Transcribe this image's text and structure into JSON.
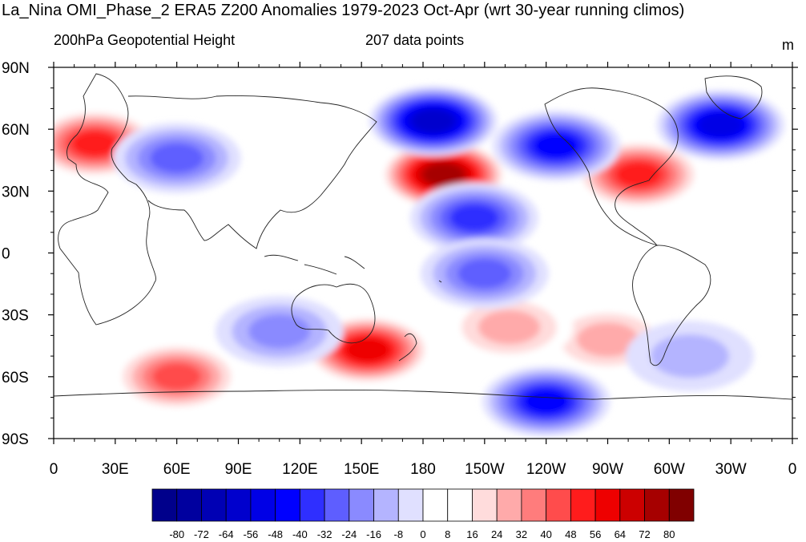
{
  "title": "La_Nina OMI_Phase_2 ERA5 Z200 Anomalies 1979-2023 Oct-Apr (wrt 30-year running climos)",
  "subtitle_left": "200hPa Geopotential Height",
  "subtitle_center": "207 data points",
  "units": "m",
  "map": {
    "projection": "cylindrical-equidistant",
    "lon_range": [
      0,
      360
    ],
    "lat_range": [
      -90,
      90
    ],
    "lat_ticks": [
      {
        "value": 90,
        "label": "90N"
      },
      {
        "value": 60,
        "label": "60N"
      },
      {
        "value": 30,
        "label": "30N"
      },
      {
        "value": 0,
        "label": "0"
      },
      {
        "value": -30,
        "label": "30S"
      },
      {
        "value": -60,
        "label": "60S"
      },
      {
        "value": -90,
        "label": "90S"
      }
    ],
    "lon_ticks": [
      {
        "value": 0,
        "label": "0"
      },
      {
        "value": 30,
        "label": "30E"
      },
      {
        "value": 60,
        "label": "60E"
      },
      {
        "value": 90,
        "label": "90E"
      },
      {
        "value": 120,
        "label": "120E"
      },
      {
        "value": 150,
        "label": "150E"
      },
      {
        "value": 180,
        "label": "180"
      },
      {
        "value": 210,
        "label": "150W"
      },
      {
        "value": 240,
        "label": "120W"
      },
      {
        "value": 270,
        "label": "90W"
      },
      {
        "value": 300,
        "label": "60W"
      },
      {
        "value": 330,
        "label": "30W"
      },
      {
        "value": 360,
        "label": "0"
      }
    ],
    "anomaly_centers": [
      {
        "lon": 190,
        "lat": 38,
        "value": 72
      },
      {
        "lon": 20,
        "lat": 53,
        "value": 48
      },
      {
        "lon": 153,
        "lat": -47,
        "value": 56
      },
      {
        "lon": 60,
        "lat": -60,
        "value": 40
      },
      {
        "lon": 285,
        "lat": 38,
        "value": 48
      },
      {
        "lon": 270,
        "lat": -42,
        "value": 24
      },
      {
        "lon": 222,
        "lat": -36,
        "value": 24
      },
      {
        "lon": 185,
        "lat": 64,
        "value": -64
      },
      {
        "lon": 325,
        "lat": 62,
        "value": -56
      },
      {
        "lon": 245,
        "lat": 52,
        "value": -48
      },
      {
        "lon": 60,
        "lat": 46,
        "value": -32
      },
      {
        "lon": 205,
        "lat": 17,
        "value": -40
      },
      {
        "lon": 210,
        "lat": -10,
        "value": -32
      },
      {
        "lon": 240,
        "lat": -72,
        "value": -48
      },
      {
        "lon": 110,
        "lat": -38,
        "value": -24
      },
      {
        "lon": 310,
        "lat": -50,
        "value": -16
      }
    ]
  },
  "colorbar": {
    "labels": [
      "-80",
      "-72",
      "-64",
      "-56",
      "-48",
      "-40",
      "-32",
      "-24",
      "-16",
      "-8",
      "0",
      "8",
      "16",
      "24",
      "32",
      "40",
      "48",
      "56",
      "64",
      "72",
      "80"
    ],
    "colors": [
      "#00008b",
      "#00009f",
      "#0000b4",
      "#0000cd",
      "#0000e6",
      "#0000ff",
      "#2f2fff",
      "#5e5eff",
      "#8a8aff",
      "#b4b4ff",
      "#e0e0ff",
      "#ffffff",
      "#ffffff",
      "#ffdcdc",
      "#ffaaaa",
      "#ff7c7c",
      "#ff4c4c",
      "#ff1c1c",
      "#ee0000",
      "#cc0000",
      "#a60000",
      "#800000"
    ]
  }
}
